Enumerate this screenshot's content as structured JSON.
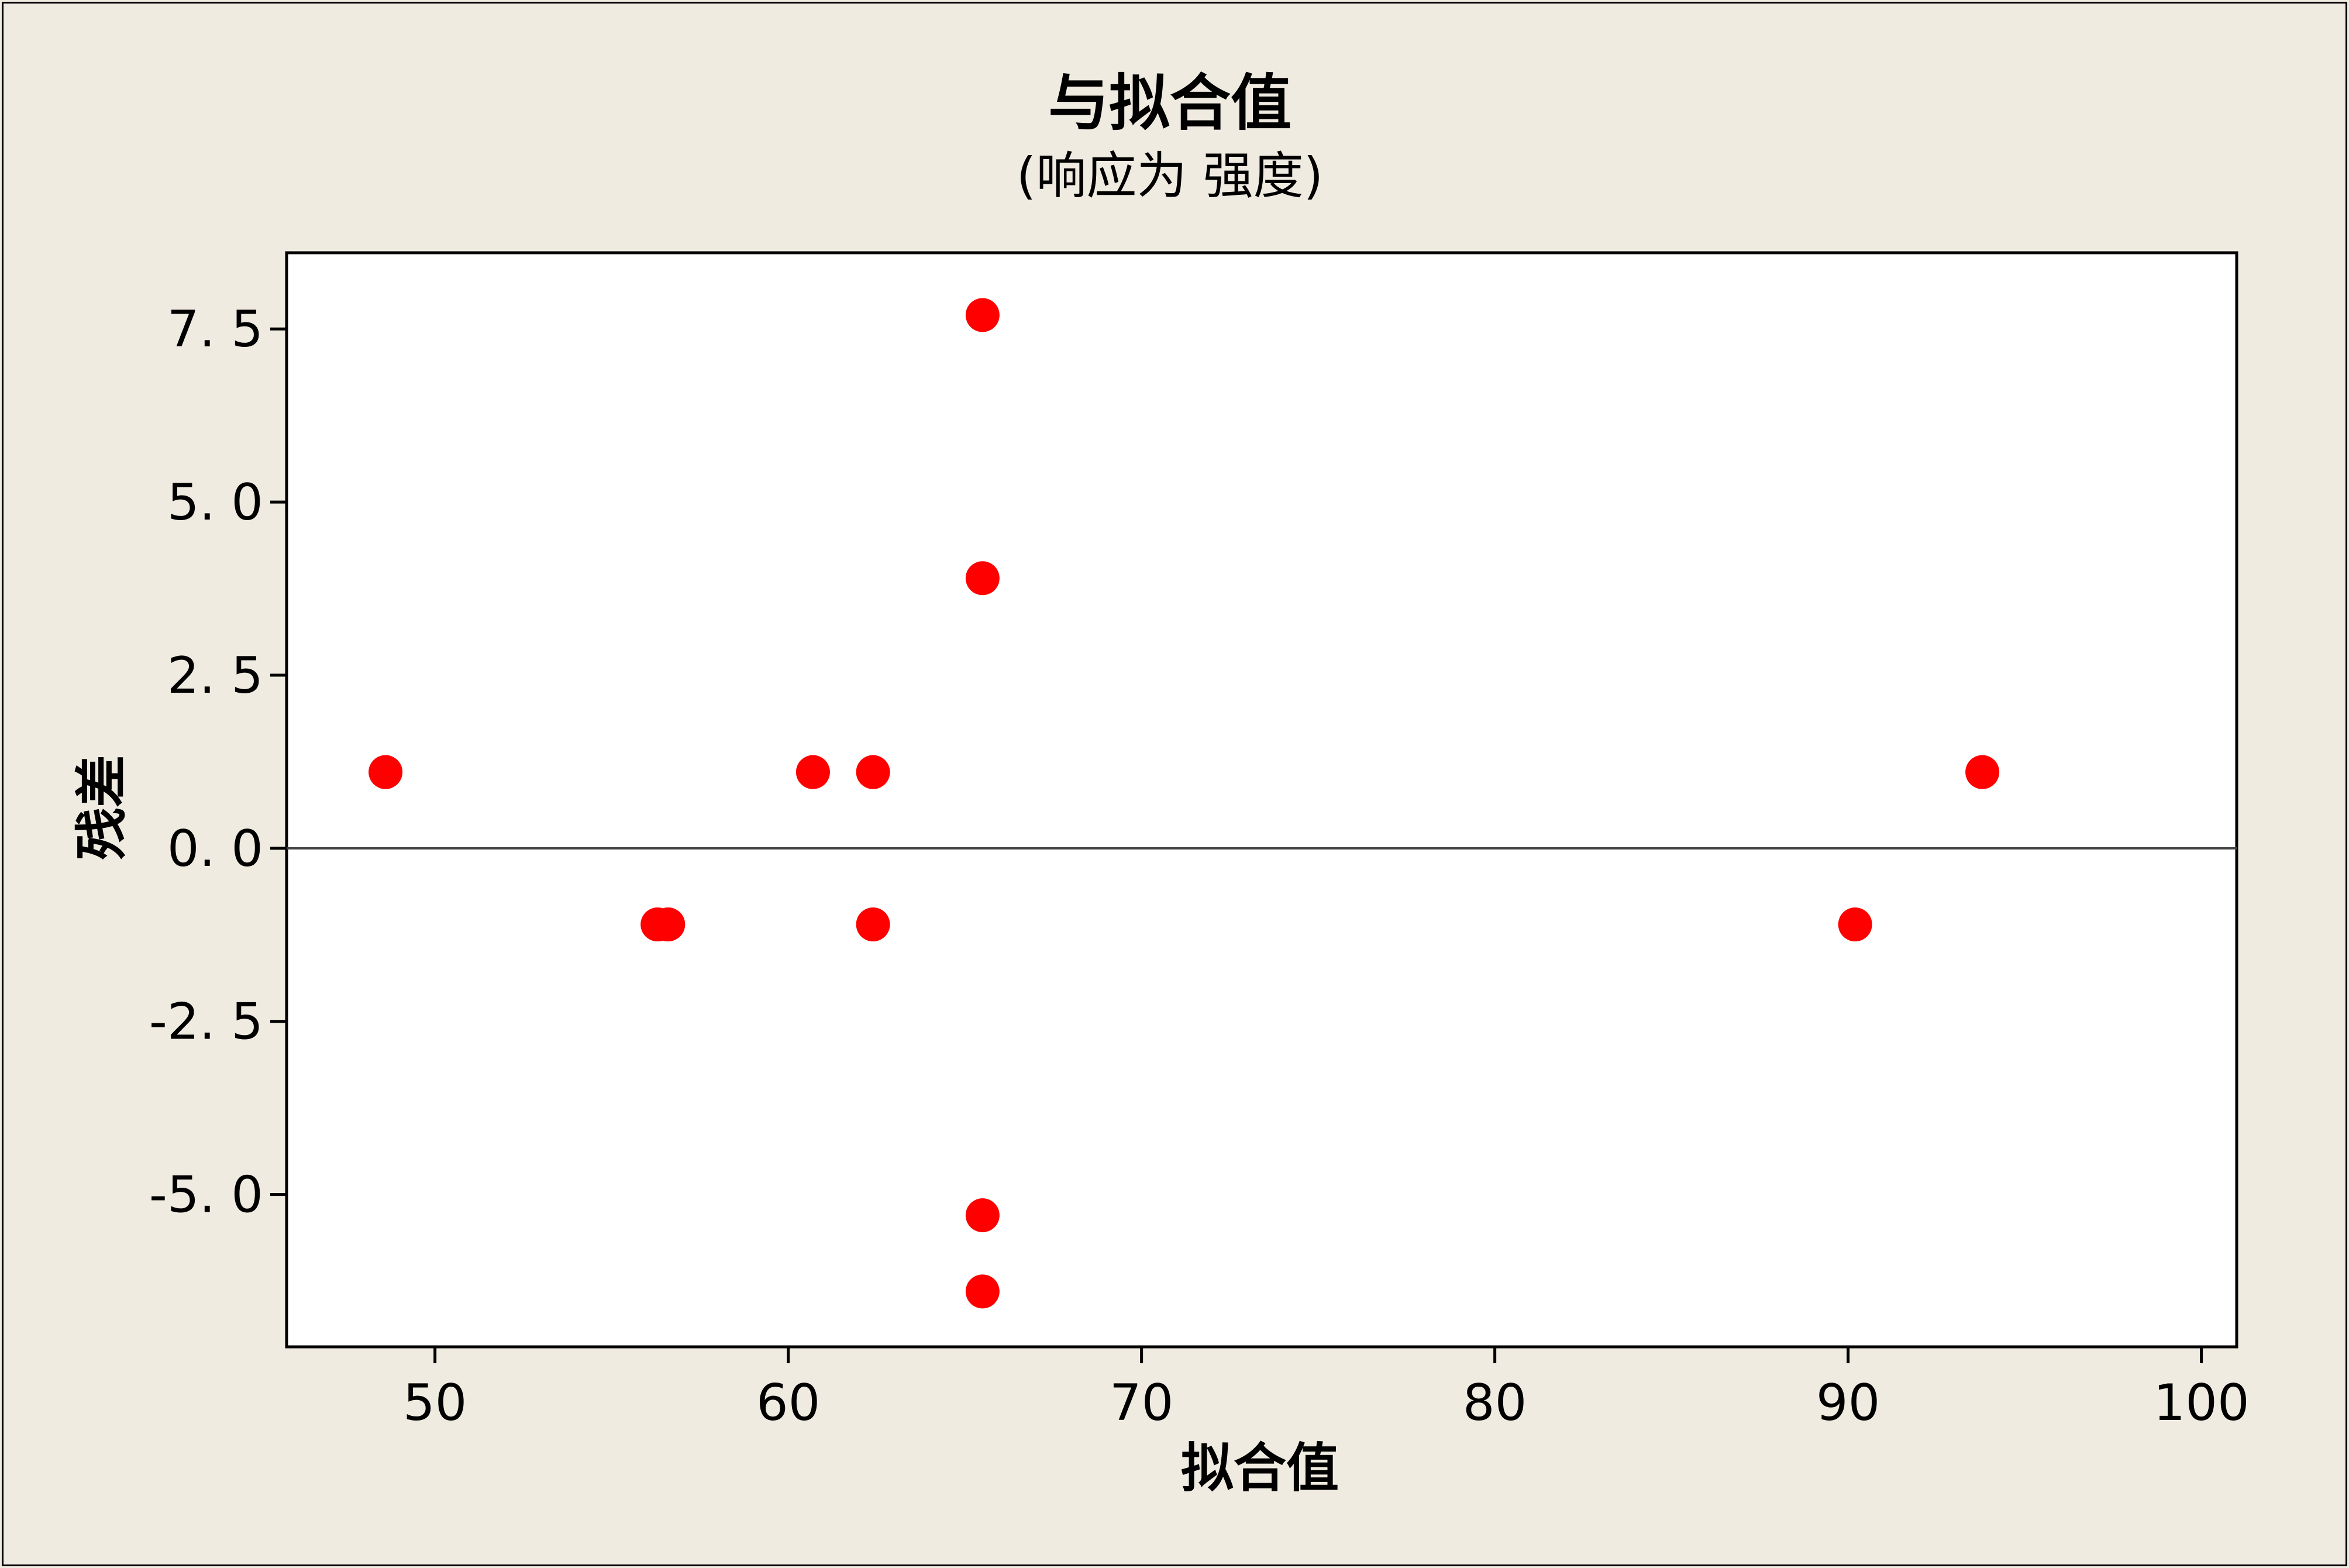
{
  "chart_data": {
    "type": "scatter",
    "title": "与拟合值",
    "subtitle": "(响应为 强度)",
    "xlabel": "拟合值",
    "ylabel": "残差",
    "xlim": [
      45.8,
      101
    ],
    "ylim": [
      -7.2,
      8.6
    ],
    "xticks": [
      50,
      60,
      70,
      80,
      90,
      100
    ],
    "yticks": [
      -5.0,
      -2.5,
      0.0,
      2.5,
      5.0,
      7.5
    ],
    "xtick_labels": [
      "50",
      "60",
      "70",
      "80",
      "90",
      "100"
    ],
    "ytick_labels": [
      "-5. 0",
      "-2. 5",
      "0. 0",
      "2. 5",
      "5. 0",
      "7. 5"
    ],
    "reference_line_y": 0,
    "grid": false,
    "marker_color": "#ff0000",
    "points": [
      {
        "x": 48.6,
        "y": 1.1
      },
      {
        "x": 56.3,
        "y": -1.1
      },
      {
        "x": 56.6,
        "y": -1.1
      },
      {
        "x": 60.7,
        "y": 1.1
      },
      {
        "x": 62.4,
        "y": 1.1
      },
      {
        "x": 62.4,
        "y": -1.1
      },
      {
        "x": 65.5,
        "y": 7.7
      },
      {
        "x": 65.5,
        "y": 3.9
      },
      {
        "x": 65.5,
        "y": -5.3
      },
      {
        "x": 65.5,
        "y": -6.4
      },
      {
        "x": 90.2,
        "y": -1.1
      },
      {
        "x": 93.8,
        "y": 1.1
      }
    ]
  }
}
